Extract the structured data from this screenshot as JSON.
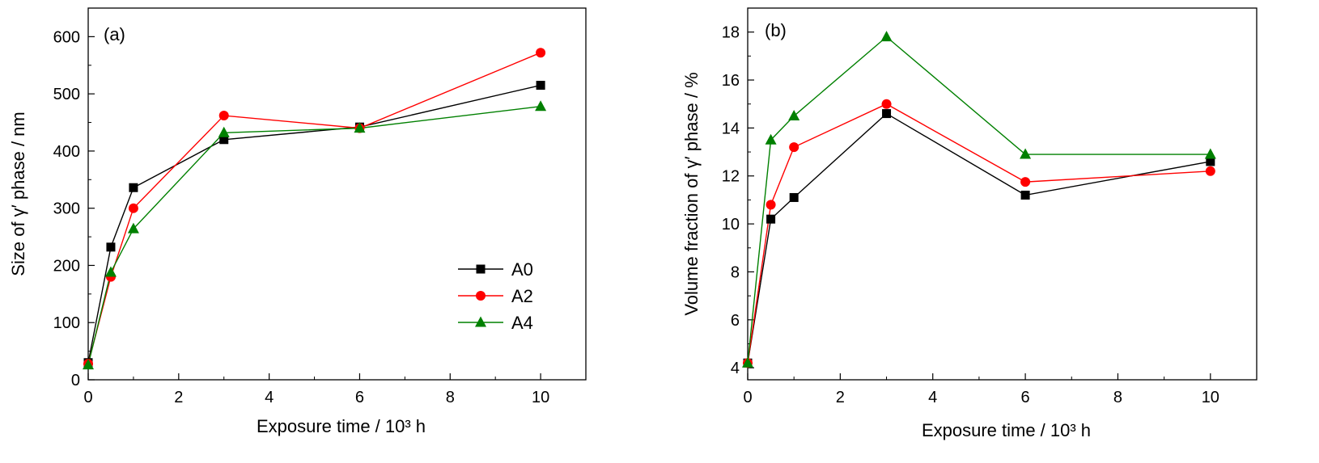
{
  "chart_data": [
    {
      "type": "line",
      "panel_label": "(a)",
      "xlabel": "Exposure time / 10³ h",
      "ylabel": "Size of γ′ phase / nm",
      "xlim": [
        0,
        11
      ],
      "ylim": [
        0,
        650
      ],
      "xticks": [
        0,
        2,
        4,
        6,
        8,
        10
      ],
      "yticks": [
        0,
        100,
        200,
        300,
        400,
        500,
        600
      ],
      "grid": false,
      "legend": "bottom-right",
      "series": [
        {
          "name": "A0",
          "color": "#000000",
          "marker": "square",
          "x": [
            0,
            0.5,
            1,
            3,
            6,
            10
          ],
          "y": [
            30,
            232,
            336,
            420,
            442,
            515
          ]
        },
        {
          "name": "A2",
          "color": "#ff0000",
          "marker": "circle",
          "x": [
            0,
            0.5,
            1,
            3,
            6,
            10
          ],
          "y": [
            28,
            180,
            300,
            462,
            440,
            572
          ]
        },
        {
          "name": "A4",
          "color": "#008000",
          "marker": "triangle",
          "x": [
            0,
            0.5,
            1,
            3,
            6,
            10
          ],
          "y": [
            26,
            188,
            264,
            432,
            440,
            478
          ]
        }
      ]
    },
    {
      "type": "line",
      "panel_label": "(b)",
      "xlabel": "Exposure time / 10³ h",
      "ylabel": "Volume fraction of γ′ phase / %",
      "xlim": [
        0,
        11
      ],
      "ylim": [
        3.5,
        19
      ],
      "xticks": [
        0,
        2,
        4,
        6,
        8,
        10
      ],
      "yticks": [
        4,
        6,
        8,
        10,
        12,
        14,
        16,
        18
      ],
      "grid": false,
      "legend": "none",
      "series": [
        {
          "name": "A0",
          "color": "#000000",
          "marker": "square",
          "x": [
            0,
            0.5,
            1,
            3,
            6,
            10
          ],
          "y": [
            4.2,
            10.2,
            11.1,
            14.6,
            11.2,
            12.6
          ]
        },
        {
          "name": "A2",
          "color": "#ff0000",
          "marker": "circle",
          "x": [
            0,
            0.5,
            1,
            3,
            6,
            10
          ],
          "y": [
            4.2,
            10.8,
            13.2,
            15.0,
            11.75,
            12.2
          ]
        },
        {
          "name": "A4",
          "color": "#008000",
          "marker": "triangle",
          "x": [
            0,
            0.5,
            1,
            3,
            6,
            10
          ],
          "y": [
            4.2,
            13.5,
            14.5,
            17.8,
            12.9,
            12.9
          ]
        }
      ]
    }
  ]
}
